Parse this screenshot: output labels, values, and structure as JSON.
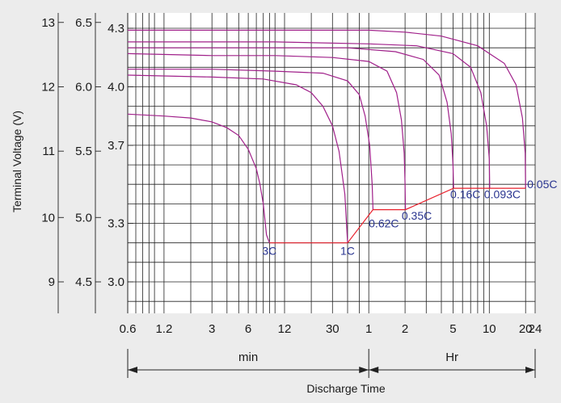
{
  "chart_data": {
    "type": "line",
    "title": "",
    "xlabel": "Discharge Time",
    "ylabel": "Terminal Voltage (V)",
    "x_scale": "log",
    "grid": true,
    "x_unit_min_label": "min",
    "x_unit_hr_label": "Hr",
    "x_ticks": [
      {
        "label": "0.6",
        "minutes": 0.6
      },
      {
        "label": "1.2",
        "minutes": 1.2
      },
      {
        "label": "3",
        "minutes": 3
      },
      {
        "label": "6",
        "minutes": 6
      },
      {
        "label": "12",
        "minutes": 12
      },
      {
        "label": "30",
        "minutes": 30
      },
      {
        "label": "1",
        "minutes": 60
      },
      {
        "label": "2",
        "minutes": 120
      },
      {
        "label": "5",
        "minutes": 300
      },
      {
        "label": "10",
        "minutes": 600
      },
      {
        "label": "20",
        "minutes": 1200
      },
      {
        "label": "24",
        "minutes": 1440
      }
    ],
    "y_axes": [
      {
        "ticks": [
          {
            "label": "13",
            "v": 4.33
          },
          {
            "label": "12",
            "v": 4.0
          },
          {
            "label": "11",
            "v": 3.67
          },
          {
            "label": "10",
            "v": 3.33
          },
          {
            "label": "9",
            "v": 3.0
          }
        ]
      },
      {
        "ticks": [
          {
            "label": "6.5",
            "v": 4.33
          },
          {
            "label": "6.0",
            "v": 4.0
          },
          {
            "label": "5.5",
            "v": 3.67
          },
          {
            "label": "5.0",
            "v": 3.33
          },
          {
            "label": "4.5",
            "v": 3.0
          }
        ]
      },
      {
        "ticks": [
          {
            "label": "4.3",
            "v": 4.3
          },
          {
            "label": "4.0",
            "v": 4.0
          },
          {
            "label": "3.7",
            "v": 3.7
          },
          {
            "label": "3.3",
            "v": 3.3
          },
          {
            "label": "3.0",
            "v": 3.0
          }
        ]
      }
    ],
    "ylim": [
      2.85,
      4.35
    ],
    "series": [
      {
        "name": "3C",
        "points": [
          [
            0.6,
            3.86
          ],
          [
            1.2,
            3.85
          ],
          [
            2.0,
            3.84
          ],
          [
            3.0,
            3.82
          ],
          [
            4.0,
            3.79
          ],
          [
            5.0,
            3.75
          ],
          [
            6.0,
            3.68
          ],
          [
            7.0,
            3.58
          ],
          [
            7.5,
            3.5
          ],
          [
            8.0,
            3.4
          ],
          [
            8.5,
            3.24
          ],
          [
            9.0,
            3.2
          ]
        ]
      },
      {
        "name": "1C",
        "points": [
          [
            0.6,
            4.06
          ],
          [
            3,
            4.05
          ],
          [
            8,
            4.04
          ],
          [
            15,
            4.01
          ],
          [
            20,
            3.97
          ],
          [
            25,
            3.9
          ],
          [
            30,
            3.8
          ],
          [
            34,
            3.67
          ],
          [
            38,
            3.45
          ],
          [
            40,
            3.2
          ]
        ]
      },
      {
        "name": "0.62C",
        "points": [
          [
            0.6,
            4.09
          ],
          [
            3,
            4.09
          ],
          [
            10,
            4.08
          ],
          [
            25,
            4.07
          ],
          [
            40,
            4.03
          ],
          [
            50,
            3.96
          ],
          [
            56,
            3.85
          ],
          [
            61,
            3.7
          ],
          [
            64,
            3.5
          ],
          [
            65,
            3.37
          ]
        ]
      },
      {
        "name": "0.35C",
        "points": [
          [
            0.6,
            4.17
          ],
          [
            3,
            4.16
          ],
          [
            10,
            4.16
          ],
          [
            30,
            4.15
          ],
          [
            60,
            4.13
          ],
          [
            85,
            4.08
          ],
          [
            102,
            3.97
          ],
          [
            112,
            3.83
          ],
          [
            118,
            3.66
          ],
          [
            120,
            3.5
          ],
          [
            121,
            3.37
          ]
        ]
      },
      {
        "name": "0.16C",
        "points": [
          [
            0.6,
            4.2
          ],
          [
            10,
            4.2
          ],
          [
            40,
            4.2
          ],
          [
            100,
            4.18
          ],
          [
            170,
            4.14
          ],
          [
            230,
            4.06
          ],
          [
            268,
            3.92
          ],
          [
            290,
            3.76
          ],
          [
            300,
            3.6
          ],
          [
            303,
            3.48
          ]
        ]
      },
      {
        "name": "0.093C",
        "points": [
          [
            0.6,
            4.23
          ],
          [
            10,
            4.23
          ],
          [
            60,
            4.22
          ],
          [
            150,
            4.21
          ],
          [
            300,
            4.17
          ],
          [
            420,
            4.1
          ],
          [
            510,
            3.97
          ],
          [
            570,
            3.8
          ],
          [
            600,
            3.63
          ],
          [
            605,
            3.48
          ]
        ]
      },
      {
        "name": "0.05C",
        "points": [
          [
            0.6,
            4.29
          ],
          [
            10,
            4.29
          ],
          [
            60,
            4.29
          ],
          [
            120,
            4.28
          ],
          [
            240,
            4.26
          ],
          [
            480,
            4.21
          ],
          [
            800,
            4.12
          ],
          [
            1000,
            4.01
          ],
          [
            1130,
            3.84
          ],
          [
            1190,
            3.66
          ],
          [
            1200,
            3.48
          ]
        ]
      }
    ],
    "end_voltage_line": {
      "points": [
        [
          9.0,
          3.2
        ],
        [
          40,
          3.2
        ],
        [
          65,
          3.37
        ],
        [
          121,
          3.37
        ],
        [
          303,
          3.48
        ],
        [
          605,
          3.48
        ],
        [
          1200,
          3.48
        ]
      ]
    },
    "curve_labels": [
      {
        "text": "3C",
        "at": [
          9.0,
          3.16
        ]
      },
      {
        "text": "1C",
        "at": [
          40,
          3.16
        ]
      },
      {
        "text": "0.62C",
        "at": [
          80,
          3.3
        ]
      },
      {
        "text": "0.35C",
        "at": [
          150,
          3.34
        ]
      },
      {
        "text": "0.16C",
        "at": [
          380,
          3.45
        ]
      },
      {
        "text": "0.093C",
        "at": [
          770,
          3.45
        ]
      },
      {
        "text": "0.05C",
        "at": [
          1650,
          3.5
        ]
      }
    ]
  }
}
